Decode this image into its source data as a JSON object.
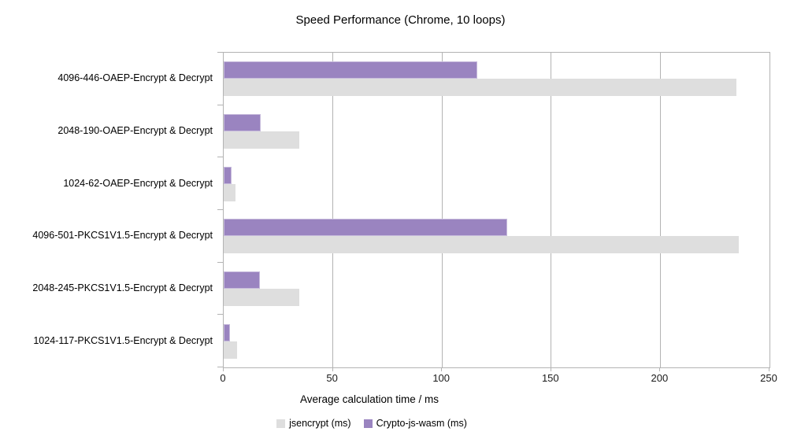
{
  "chart_data": {
    "type": "bar",
    "orientation": "horizontal",
    "title": "Speed Performance (Chrome, 10 loops)",
    "xlabel": "Average calculation time / ms",
    "categories": [
      "4096-446-OAEP-Encrypt & Decrypt",
      "2048-190-OAEP-Encrypt & Decrypt",
      "1024-62-OAEP-Encrypt & Decrypt",
      "4096-501-PKCS1V1.5-Encrypt & Decrypt",
      "2048-245-PKCS1V1.5-Encrypt & Decrypt",
      "1024-117-PKCS1V1.5-Encrypt & Decrypt"
    ],
    "series": [
      {
        "name": "jsencrypt (ms)",
        "color": "#dedede",
        "values": [
          235,
          34.5,
          5.5,
          236,
          34.5,
          6
        ]
      },
      {
        "name": "Crypto-js-wasm (ms)",
        "color": "#9a84c0",
        "values": [
          116,
          17,
          3.5,
          130,
          16.5,
          3
        ]
      }
    ],
    "xlim": [
      0,
      250
    ],
    "xticks": [
      0,
      50,
      100,
      150,
      200,
      250
    ],
    "grid": "vertical",
    "grid_color": "#b3b3b3",
    "legend_position": "bottom"
  }
}
